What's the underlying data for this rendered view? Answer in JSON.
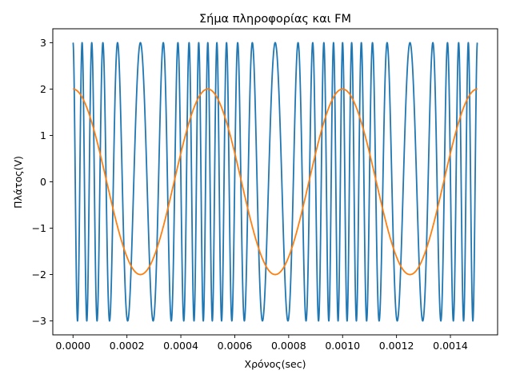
{
  "chart_data": {
    "type": "line",
    "title": "Σήμα πληροφορίας και FM",
    "xlabel": "Χρόνος(sec)",
    "ylabel": "Πλάτος(V)",
    "xlim": [
      -7.5e-05,
      0.001575
    ],
    "ylim": [
      -3.3,
      3.3
    ],
    "x_ticks": [
      0.0,
      0.0002,
      0.0004,
      0.0006,
      0.0008,
      0.001,
      0.0012,
      0.0014
    ],
    "x_tick_labels": [
      "0.0000",
      "0.0002",
      "0.0004",
      "0.0006",
      "0.0008",
      "0.0010",
      "0.0012",
      "0.0014"
    ],
    "y_ticks": [
      -3,
      -2,
      -1,
      0,
      1,
      2,
      3
    ],
    "y_tick_labels": [
      "−3",
      "−2",
      "−1",
      "0",
      "1",
      "2",
      "3"
    ],
    "grid": false,
    "series": [
      {
        "kind": "fm",
        "color": "#1f77b4",
        "amplitude": 3,
        "carrier_freq_hz": 20000,
        "deviation_freq_hz": 10000,
        "message_freq_hz": 2000,
        "t_start": 0.0,
        "t_end": 0.0015
      },
      {
        "kind": "message",
        "color": "#ff7f0e",
        "amplitude": 2,
        "freq_hz": 2000,
        "t_start": 0.0,
        "t_end": 0.0015
      }
    ]
  }
}
